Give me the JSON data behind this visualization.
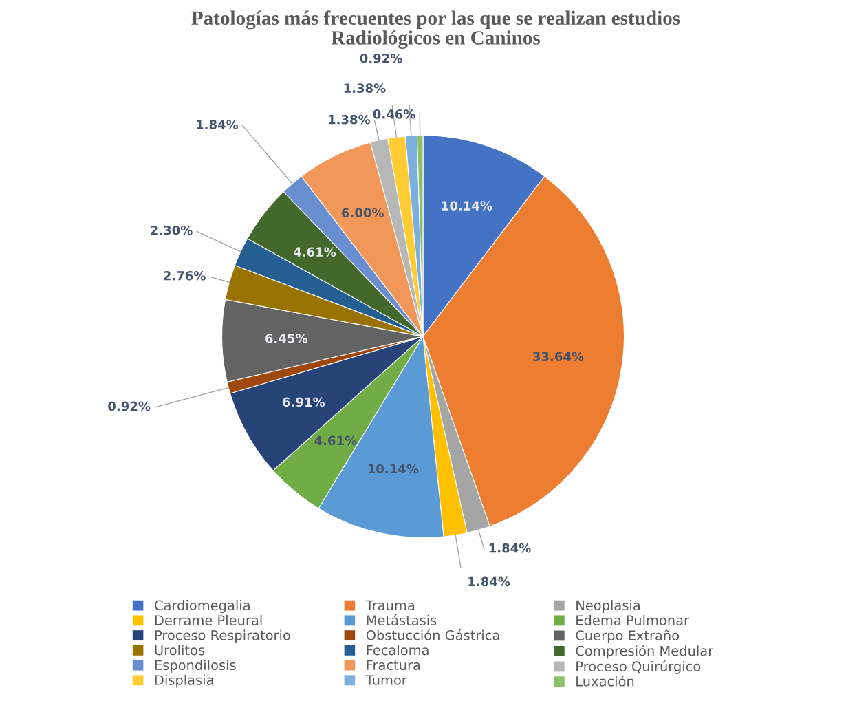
{
  "chart_data": {
    "type": "pie",
    "title": "Patologías más frecuentes por las que se realizan estudios\nRadiológicos en Caninos",
    "categories": [
      "Cardiomegalia",
      "Trauma",
      "Neoplasia",
      "Derrame Pleural",
      "Metástasis",
      "Edema Pulmonar",
      "Proceso Respiratorio",
      "Obstucción Gástrica",
      "Cuerpo Extraño",
      "Urolitos",
      "Fecaloma",
      "Compresión Medular",
      "Espondilosis",
      "Fractura",
      "Proceso Quirúrgico",
      "Displasia",
      "Tumor",
      "Luxación"
    ],
    "values": [
      10.14,
      33.64,
      1.84,
      1.84,
      10.14,
      4.61,
      6.91,
      0.92,
      6.45,
      2.76,
      2.3,
      4.61,
      1.84,
      6.0,
      1.38,
      1.38,
      0.92,
      0.46
    ],
    "value_labels": [
      "10.14%",
      "33.64%",
      "1.84%",
      "1.84%",
      "10.14%",
      "4.61%",
      "6.91%",
      "0.92%",
      "6.45%",
      "2.76%",
      "2.30%",
      "4.61%",
      "1.84%",
      "6.00%",
      "1.38%",
      "1.38%",
      "0.92%",
      "0.46%"
    ],
    "colors": [
      "#4472c4",
      "#ed7d31",
      "#a5a5a5",
      "#ffc000",
      "#5b9bd5",
      "#70ad47",
      "#264478",
      "#9e480e",
      "#636363",
      "#997300",
      "#255e91",
      "#43682b",
      "#698ed0",
      "#f1975a",
      "#b7b7b7",
      "#ffcd33",
      "#7cafdd",
      "#8cc168"
    ],
    "legend": "bottom"
  }
}
